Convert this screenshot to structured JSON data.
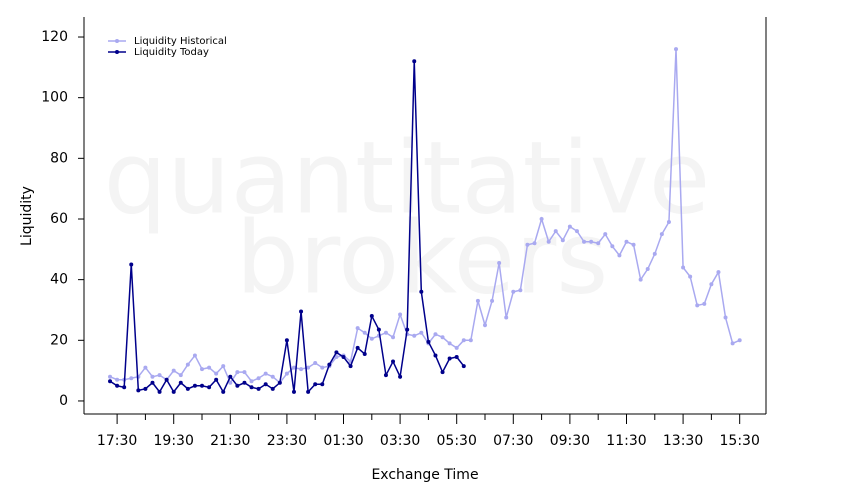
{
  "chart_data": {
    "type": "line",
    "watermark": [
      "quantitative",
      "brokers"
    ],
    "x_label": "Exchange Time",
    "y_label": "Liquidity",
    "x": [
      17.25,
      17.5,
      17.75,
      18,
      18.25,
      18.5,
      18.75,
      19,
      19.25,
      19.5,
      19.75,
      20,
      20.25,
      20.5,
      20.75,
      21,
      21.25,
      21.5,
      21.75,
      22,
      22.25,
      22.5,
      22.75,
      23,
      23.25,
      23.5,
      23.75,
      24,
      24.25,
      24.5,
      24.75,
      25,
      25.25,
      25.5,
      25.75,
      26,
      26.25,
      26.5,
      26.75,
      27,
      27.25,
      27.5,
      27.75,
      28,
      28.25,
      28.5,
      28.75,
      29,
      29.25,
      29.5,
      29.75,
      30,
      30.25,
      30.5,
      30.75,
      31,
      31.25,
      31.5,
      31.75,
      32,
      32.25,
      32.5,
      32.75,
      33,
      33.25,
      33.5,
      33.75,
      34,
      34.25,
      34.5,
      34.75,
      35,
      35.25,
      35.5,
      35.75,
      36,
      36.25,
      36.5,
      36.75,
      37,
      37.25,
      37.5,
      37.75,
      38,
      38.25,
      38.5,
      38.75,
      39,
      39.25,
      39.5
    ],
    "series": [
      {
        "name": "Liquidity Historical",
        "color": "#a9a9f0",
        "values": [
          8,
          7,
          7,
          7.5,
          8,
          11,
          8,
          8.5,
          7,
          10,
          8.5,
          12,
          15,
          10.5,
          11,
          9,
          11.5,
          6,
          9.5,
          9.5,
          6.5,
          7.5,
          9,
          8,
          6,
          9,
          11,
          10.5,
          11,
          12.5,
          11,
          11.5,
          14.5,
          15,
          13,
          24,
          22.5,
          20.5,
          21.5,
          22.5,
          21,
          28.5,
          22,
          21.5,
          22.5,
          19,
          22,
          21,
          19,
          17.5,
          20,
          20,
          33,
          25,
          33,
          45.5,
          27.5,
          36,
          36.5,
          51.5,
          52,
          60,
          52.5,
          56,
          53,
          57.5,
          56,
          52.5,
          52.5,
          52,
          55,
          51,
          48,
          52.5,
          51.5,
          40,
          43.5,
          48.5,
          55,
          59,
          116,
          44,
          41,
          31.5,
          32,
          38.5,
          42.5,
          27.5,
          19,
          20
        ]
      },
      {
        "name": "Liquidity Today",
        "color": "#00008b",
        "values": [
          6.5,
          5,
          4.5,
          45,
          3.5,
          4,
          6,
          3,
          7,
          3,
          6,
          4,
          5,
          5,
          4.5,
          7,
          3,
          8,
          5,
          6,
          4.5,
          4,
          5.5,
          4,
          6,
          20,
          3,
          29.5,
          3,
          5.5,
          5.5,
          12,
          16,
          14.5,
          11.5,
          17.5,
          15.5,
          28,
          23.5,
          8.5,
          13,
          8,
          23.5,
          112,
          36,
          19.5,
          15,
          9.5,
          14,
          14.5,
          11.5,
          null,
          null,
          null,
          null,
          null,
          null,
          null,
          null,
          null,
          null,
          null,
          null,
          null,
          null,
          null,
          null,
          null,
          null,
          null,
          null,
          null,
          null,
          null,
          null,
          null,
          null,
          null,
          null,
          null,
          null,
          null,
          null,
          null,
          null,
          null,
          null,
          null,
          null,
          null
        ]
      }
    ],
    "xlim": [
      16.33,
      40.43
    ],
    "xticks": [
      {
        "value": 17.5,
        "label": "17:30"
      },
      {
        "value": 19.5,
        "label": "19:30"
      },
      {
        "value": 21.5,
        "label": "21:30"
      },
      {
        "value": 23.5,
        "label": "23:30"
      },
      {
        "value": 25.5,
        "label": "01:30"
      },
      {
        "value": 27.5,
        "label": "03:30"
      },
      {
        "value": 29.5,
        "label": "05:30"
      },
      {
        "value": 31.5,
        "label": "07:30"
      },
      {
        "value": 33.5,
        "label": "09:30"
      },
      {
        "value": 35.5,
        "label": "11:30"
      },
      {
        "value": 37.5,
        "label": "13:30"
      },
      {
        "value": 39.5,
        "label": "15:30"
      }
    ],
    "xminorticks": [
      18.5,
      20.5,
      22.5,
      24.5,
      26.5,
      28.5,
      30.5,
      32.5,
      34.5,
      36.5,
      38.5
    ],
    "ylim": [
      -4.3,
      126.6
    ],
    "yticks": [
      0,
      20,
      40,
      60,
      80,
      100,
      120
    ],
    "legend": "top-left"
  }
}
